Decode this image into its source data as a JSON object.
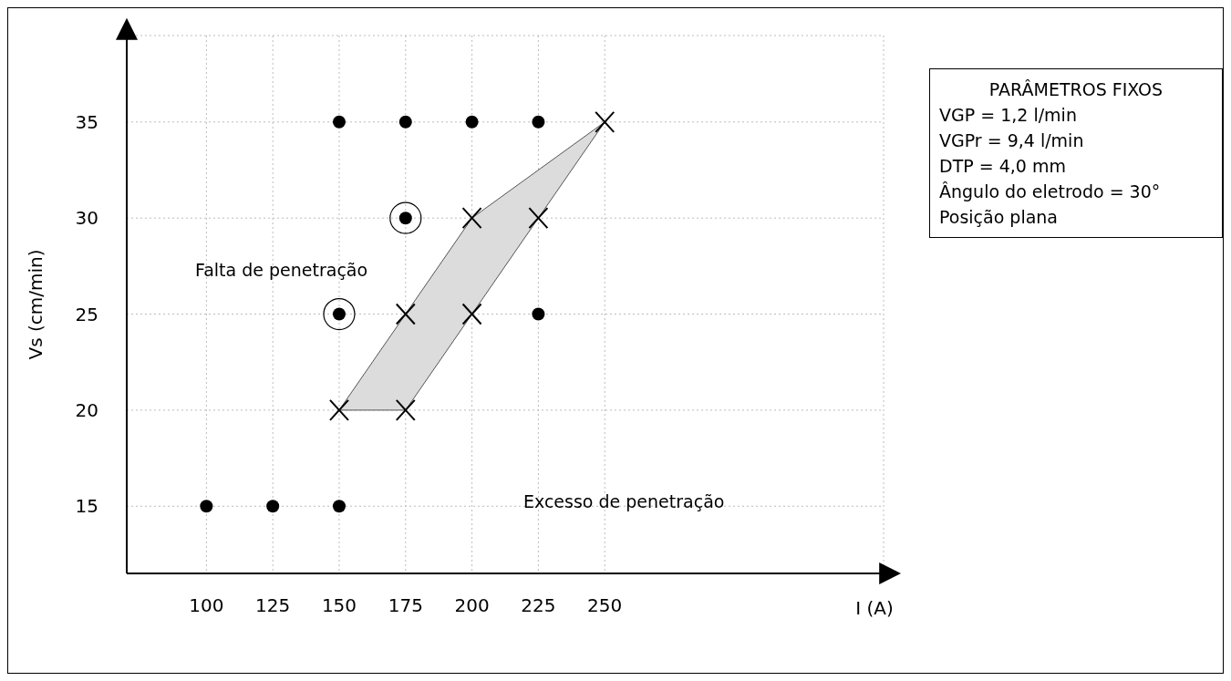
{
  "chart_data": {
    "type": "scatter",
    "xlabel": "I (A)",
    "ylabel": "Vs (cm/min)",
    "xlim": [
      70,
      355
    ],
    "xticks": [
      100,
      125,
      150,
      175,
      200,
      225,
      250
    ],
    "ylim": [
      11.5,
      39.5
    ],
    "yticks": [
      15,
      20,
      25,
      30,
      35
    ],
    "grid": true,
    "series": [
      {
        "type": "area",
        "color": "#dcdcdc",
        "x": [
          150,
          200,
          250,
          225,
          200,
          175,
          150
        ],
        "values": [
          20,
          30,
          35,
          30,
          25,
          20,
          20
        ]
      },
      {
        "type": "scatter",
        "marker": "circle",
        "color": "#000000",
        "x": [
          150,
          175,
          200,
          225,
          225,
          100,
          125,
          150
        ],
        "values": [
          35,
          35,
          35,
          35,
          25,
          15,
          15,
          15
        ]
      },
      {
        "type": "scatter",
        "marker": "cross",
        "color": "#000000",
        "x": [
          250,
          200,
          225,
          175,
          200,
          150,
          175
        ],
        "values": [
          35,
          30,
          30,
          25,
          25,
          20,
          20
        ]
      },
      {
        "type": "scatter",
        "marker": "circle",
        "color": "#000000",
        "x": [
          175,
          150
        ],
        "values": [
          30,
          25
        ]
      }
    ],
    "annotations": [
      "Falta de penetração",
      "Excesso de penetração",
      "PARÂMETROS FIXOS",
      "VGP = 1,2 l/min",
      "VGPr = 9,4 l/min",
      "DTP = 4,0 mm",
      "Ângulo do eletrodo = 30°",
      "Posição plana"
    ]
  }
}
